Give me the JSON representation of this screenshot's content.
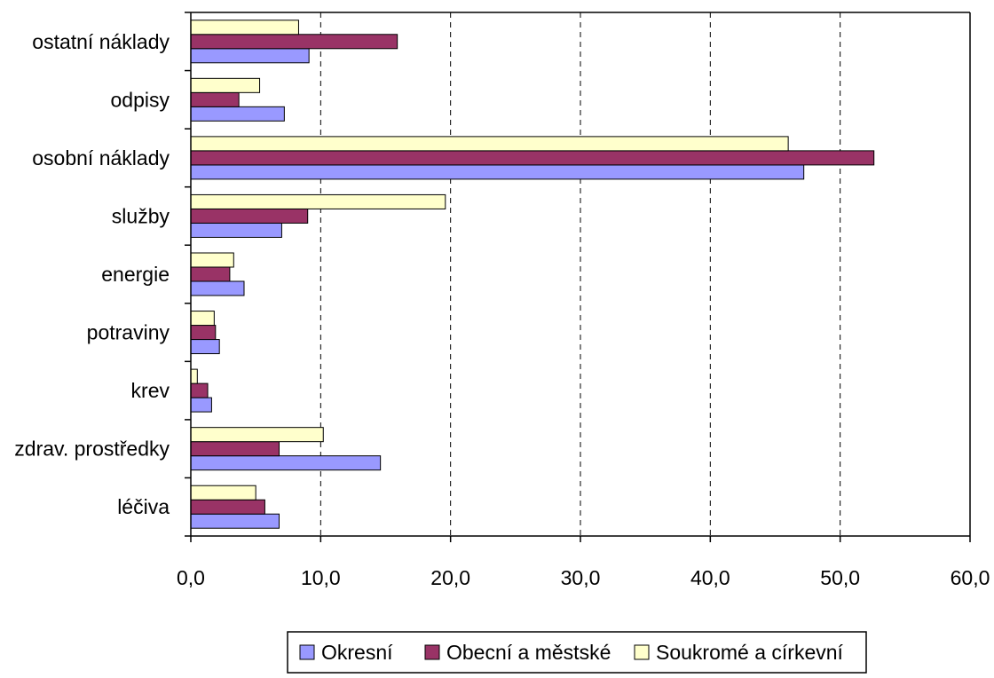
{
  "chart_data": {
    "type": "bar",
    "orientation": "horizontal",
    "categories": [
      "léčiva",
      "zdrav. prostředky",
      "krev",
      "potraviny",
      "energie",
      "služby",
      "osobní náklady",
      "odpisy",
      "ostatní náklady"
    ],
    "series": [
      {
        "name": "Okresní",
        "color": "#9999ff",
        "values": [
          6.8,
          14.6,
          1.6,
          2.2,
          4.1,
          7.0,
          47.2,
          7.2,
          9.1
        ]
      },
      {
        "name": "Obecní a městské",
        "color": "#993366",
        "values": [
          5.7,
          6.8,
          1.3,
          1.9,
          3.0,
          9.0,
          52.6,
          3.7,
          15.9
        ]
      },
      {
        "name": "Soukromé a církevní",
        "color": "#ffffcc",
        "values": [
          5.0,
          10.2,
          0.5,
          1.8,
          3.3,
          19.6,
          46.0,
          5.3,
          8.3
        ]
      }
    ],
    "x_ticks": [
      "0,0",
      "10,0",
      "20,0",
      "30,0",
      "40,0",
      "50,0",
      "60,0"
    ],
    "xlim": [
      0,
      60
    ],
    "grid": "vertical dashed",
    "legend_position": "bottom"
  }
}
